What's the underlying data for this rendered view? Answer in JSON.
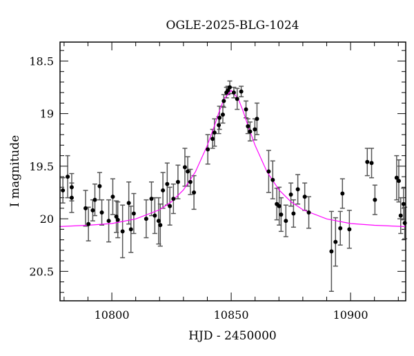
{
  "chart_data": {
    "type": "scatter",
    "title": "OGLE-2025-BLG-1024",
    "xlabel": "HJD - 2450000",
    "ylabel": "I magnitude",
    "xlim": [
      10778.3,
      10923.1
    ],
    "ylim": [
      20.78,
      18.32
    ],
    "y_inverted": true,
    "grid": false,
    "x_ticks": [
      10800,
      10850,
      10900
    ],
    "x_tick_labels": [
      "10800",
      "10850",
      "10900"
    ],
    "y_ticks": [
      18.5,
      19,
      19.5,
      20,
      20.5
    ],
    "y_tick_labels": [
      "18.5",
      "19",
      "19.5",
      "20",
      "20.5"
    ],
    "colors": {
      "points": "#000000",
      "errorbars": "#555555",
      "model": "#ff00ff"
    },
    "points": [
      [
        10779.5,
        19.73,
        0.12
      ],
      [
        10781.5,
        19.6,
        0.2
      ],
      [
        10783.2,
        19.8,
        0.14
      ],
      [
        10783.2,
        19.7,
        0.13
      ],
      [
        10789.0,
        19.9,
        0.17
      ],
      [
        10790.2,
        20.05,
        0.16
      ],
      [
        10792.0,
        19.92,
        0.1
      ],
      [
        10792.9,
        19.82,
        0.15
      ],
      [
        10794.9,
        19.69,
        0.13
      ],
      [
        10795.8,
        19.94,
        0.12
      ],
      [
        10798.7,
        20.02,
        0.2
      ],
      [
        10800.4,
        19.79,
        0.17
      ],
      [
        10801.9,
        19.98,
        0.15
      ],
      [
        10802.5,
        20.01,
        0.17
      ],
      [
        10804.5,
        20.12,
        0.25
      ],
      [
        10807.1,
        19.85,
        0.2
      ],
      [
        10808.0,
        20.1,
        0.22
      ],
      [
        10809.2,
        19.95,
        0.19
      ],
      [
        10814.4,
        20.0,
        0.18
      ],
      [
        10816.6,
        19.81,
        0.16
      ],
      [
        10818.0,
        19.97,
        0.17
      ],
      [
        10819.6,
        20.02,
        0.22
      ],
      [
        10820.3,
        20.06,
        0.2
      ],
      [
        10821.4,
        19.73,
        0.17
      ],
      [
        10823.2,
        19.67,
        0.2
      ],
      [
        10824.3,
        19.88,
        0.18
      ],
      [
        10825.8,
        19.81,
        0.14
      ],
      [
        10827.7,
        19.65,
        0.16
      ],
      [
        10830.6,
        19.51,
        0.18
      ],
      [
        10831.8,
        19.55,
        0.14
      ],
      [
        10832.9,
        19.65,
        0.12
      ],
      [
        10834.4,
        19.75,
        0.16
      ],
      [
        10840.2,
        19.34,
        0.14
      ],
      [
        10842.2,
        19.24,
        0.09
      ],
      [
        10843.0,
        19.18,
        0.13
      ],
      [
        10844.8,
        19.11,
        0.08
      ],
      [
        10845.1,
        19.04,
        0.11
      ],
      [
        10846.5,
        19.01,
        0.08
      ],
      [
        10846.9,
        18.88,
        0.06
      ],
      [
        10848.0,
        18.8,
        0.05
      ],
      [
        10848.6,
        18.78,
        0.04
      ],
      [
        10849.4,
        18.75,
        0.06
      ],
      [
        10851.1,
        18.8,
        0.05
      ],
      [
        10852.5,
        18.86,
        0.1
      ],
      [
        10854.2,
        18.79,
        0.05
      ],
      [
        10856.2,
        18.96,
        0.08
      ],
      [
        10857.0,
        19.12,
        0.07
      ],
      [
        10857.9,
        19.17,
        0.09
      ],
      [
        10859.9,
        19.15,
        0.1
      ],
      [
        10860.8,
        19.05,
        0.15
      ],
      [
        10865.7,
        19.55,
        0.2
      ],
      [
        10867.4,
        19.63,
        0.18
      ],
      [
        10869.1,
        19.86,
        0.15
      ],
      [
        10870.1,
        19.88,
        0.18
      ],
      [
        10870.9,
        19.96,
        0.16
      ],
      [
        10872.9,
        20.02,
        0.15
      ],
      [
        10875.0,
        19.77,
        0.11
      ],
      [
        10876.1,
        19.95,
        0.13
      ],
      [
        10877.9,
        19.72,
        0.14
      ],
      [
        10880.8,
        19.79,
        0.13
      ],
      [
        10882.5,
        19.94,
        0.15
      ],
      [
        10892.0,
        20.31,
        0.38
      ],
      [
        10893.7,
        20.22,
        0.23
      ],
      [
        10895.7,
        20.09,
        0.16
      ],
      [
        10896.6,
        19.76,
        0.14
      ],
      [
        10899.5,
        20.1,
        0.18
      ],
      [
        10907.0,
        19.46,
        0.13
      ],
      [
        10908.8,
        19.47,
        0.14
      ],
      [
        10910.2,
        19.82,
        0.14
      ],
      [
        10919.3,
        19.61,
        0.21
      ],
      [
        10920.2,
        19.64,
        0.2
      ],
      [
        10921.0,
        19.97,
        0.17
      ],
      [
        10922.2,
        19.86,
        0.15
      ],
      [
        10922.7,
        20.04,
        0.15
      ]
    ],
    "model": [
      [
        10778,
        20.074
      ],
      [
        10790,
        20.062
      ],
      [
        10800,
        20.045
      ],
      [
        10810,
        20.001
      ],
      [
        10820,
        19.914
      ],
      [
        10825,
        19.838
      ],
      [
        10830,
        19.725
      ],
      [
        10835,
        19.554
      ],
      [
        10840,
        19.302
      ],
      [
        10843,
        19.113
      ],
      [
        10845,
        18.978
      ],
      [
        10847,
        18.861
      ],
      [
        10850,
        18.78
      ],
      [
        10853,
        18.861
      ],
      [
        10855,
        18.978
      ],
      [
        10857,
        19.113
      ],
      [
        10860,
        19.302
      ],
      [
        10865,
        19.554
      ],
      [
        10870,
        19.725
      ],
      [
        10875,
        19.838
      ],
      [
        10880,
        19.914
      ],
      [
        10890,
        20.001
      ],
      [
        10900,
        20.045
      ],
      [
        10910,
        20.062
      ],
      [
        10923,
        20.075
      ]
    ]
  }
}
